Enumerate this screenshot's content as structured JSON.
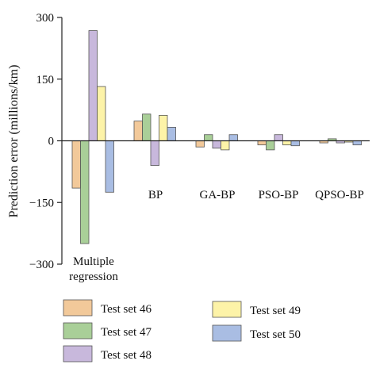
{
  "chart_data": {
    "type": "bar",
    "title": "",
    "xlabel": "",
    "ylabel": "Prediction error (millions/km)",
    "ylim": [
      -300,
      300
    ],
    "yticks": [
      300,
      150,
      0,
      -150,
      -300
    ],
    "ytick_labels": [
      "300",
      "150",
      "0",
      "−150",
      "−300"
    ],
    "categories": [
      "Multiple regression",
      "BP",
      "GA-BP",
      "PSO-BP",
      "QPSO-BP"
    ],
    "category_label_lines": [
      [
        "Multiple",
        "regression"
      ],
      [
        "BP"
      ],
      [
        "GA-BP"
      ],
      [
        "PSO-BP"
      ],
      [
        "QPSO-BP"
      ]
    ],
    "grid": false,
    "legend_position": "bottom",
    "series": [
      {
        "name": "Test set 46",
        "color": "#f2c99a",
        "values": [
          -115,
          48,
          -15,
          -10,
          -5
        ]
      },
      {
        "name": "Test set 47",
        "color": "#a9cf98",
        "values": [
          -250,
          65,
          15,
          -22,
          5
        ]
      },
      {
        "name": "Test set 48",
        "color": "#c8b8dc",
        "values": [
          268,
          -60,
          -18,
          15,
          -5
        ]
      },
      {
        "name": "Test set 49",
        "color": "#fdf3a8",
        "values": [
          132,
          62,
          -22,
          -10,
          -3
        ]
      },
      {
        "name": "Test set 50",
        "color": "#a9bde3",
        "values": [
          -125,
          33,
          15,
          -12,
          -10
        ]
      }
    ]
  }
}
